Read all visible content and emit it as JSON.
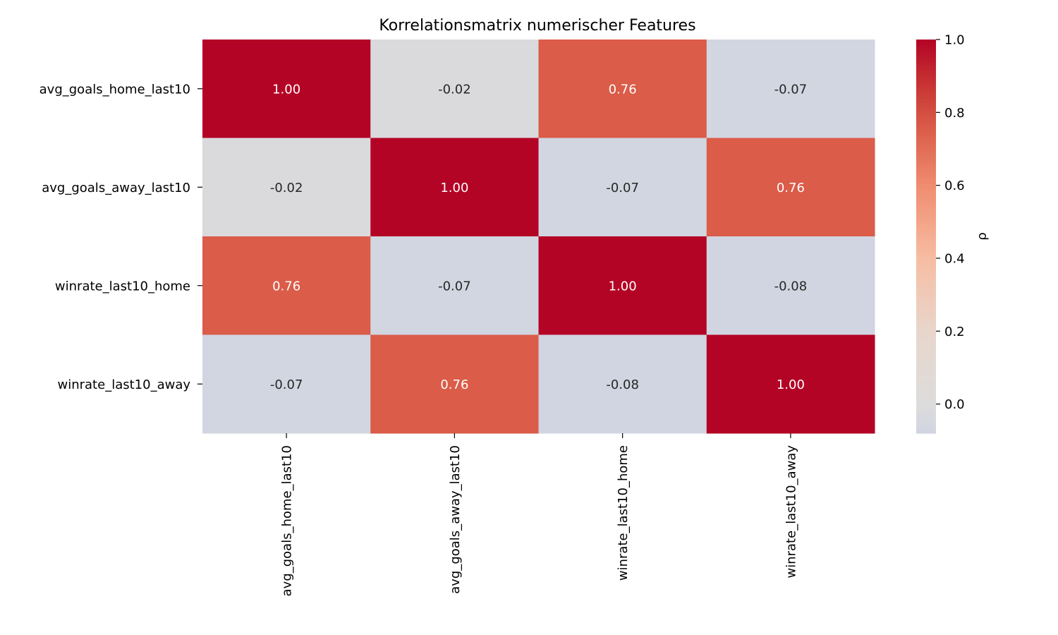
{
  "chart_data": {
    "type": "heatmap",
    "title": "Korrelationsmatrix numerischer Features",
    "rows": [
      "avg_goals_home_last10",
      "avg_goals_away_last10",
      "winrate_last10_home",
      "winrate_last10_away"
    ],
    "columns": [
      "avg_goals_home_last10",
      "avg_goals_away_last10",
      "winrate_last10_home",
      "winrate_last10_away"
    ],
    "values": [
      [
        1.0,
        -0.02,
        0.76,
        -0.07
      ],
      [
        -0.02,
        1.0,
        -0.07,
        0.76
      ],
      [
        0.76,
        -0.07,
        1.0,
        -0.08
      ],
      [
        -0.07,
        0.76,
        -0.08,
        1.0
      ]
    ],
    "value_format": "2 decimals",
    "colormap": "coolwarm",
    "colorbar": {
      "label": "ρ",
      "range": [
        -0.08,
        1.0
      ],
      "ticks": [
        0.0,
        0.2,
        0.4,
        0.6,
        0.8,
        1.0
      ],
      "tick_labels": [
        "0.0",
        "0.2",
        "0.4",
        "0.6",
        "0.8",
        "1.0"
      ]
    },
    "grid": false
  }
}
